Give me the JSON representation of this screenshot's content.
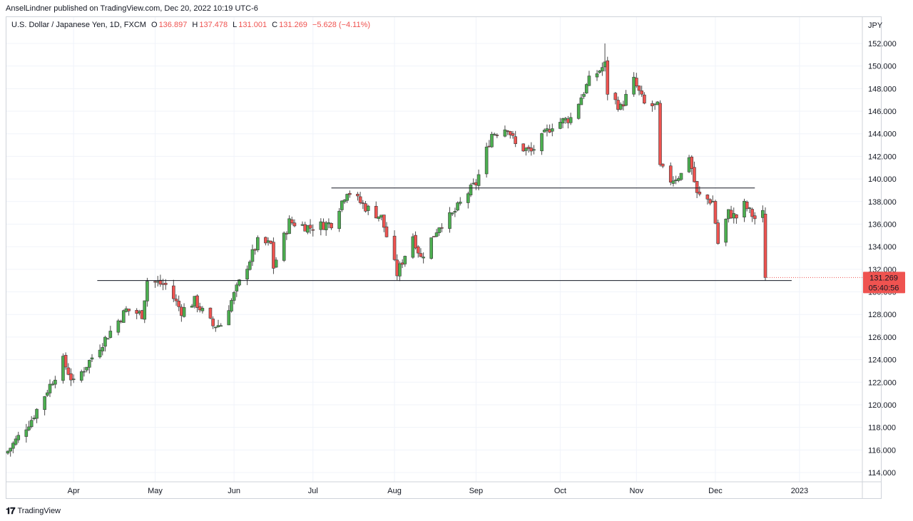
{
  "publisher": "AnselLindner published on TradingView.com, Dec 20, 2022 10:19 UTC-6",
  "legend": {
    "symbol": "U.S. Dollar / Japanese Yen, 1D, FXCM",
    "o_label": "O",
    "o_value": "136.897",
    "h_label": "H",
    "h_value": "137.478",
    "l_label": "L",
    "l_value": "131.001",
    "c_label": "C",
    "c_value": "131.269",
    "change": "−5.628 (−4.11%)"
  },
  "footer": {
    "logo_text": "TradingView"
  },
  "chart_data": {
    "type": "candlestick",
    "currency": "JPY",
    "last_price": "131.269",
    "countdown": "05:40:56",
    "ylim": [
      113,
      154
    ],
    "y_ticks": [
      "152.000",
      "150.000",
      "148.000",
      "146.000",
      "144.000",
      "142.000",
      "140.000",
      "138.000",
      "136.000",
      "134.000",
      "132.000",
      "130.000",
      "128.000",
      "126.000",
      "124.000",
      "122.000",
      "120.000",
      "118.000",
      "116.000",
      "114.000"
    ],
    "x_ticks": [
      {
        "label": "Apr",
        "date": "2022-04-01"
      },
      {
        "label": "May",
        "date": "2022-05-02"
      },
      {
        "label": "Jun",
        "date": "2022-06-01"
      },
      {
        "label": "Jul",
        "date": "2022-07-01"
      },
      {
        "label": "Aug",
        "date": "2022-08-01"
      },
      {
        "label": "Sep",
        "date": "2022-09-01"
      },
      {
        "label": "Oct",
        "date": "2022-10-03"
      },
      {
        "label": "Nov",
        "date": "2022-11-01"
      },
      {
        "label": "Dec",
        "date": "2022-12-01"
      },
      {
        "label": "2023",
        "date": "2023-01-02"
      }
    ],
    "up_color": "#4caf50",
    "down_color": "#ef5350",
    "horizontal_lines": [
      {
        "price": 139.2,
        "from": "2022-07-08",
        "to": "2022-12-16"
      },
      {
        "price": 131.0,
        "from": "2022-04-10",
        "to": "2022-12-30"
      }
    ],
    "waypoints": [
      [
        "2022-03-07",
        115.9
      ],
      [
        "2022-03-16",
        118.7
      ],
      [
        "2022-03-28",
        123.9
      ],
      [
        "2022-04-01",
        121.9
      ],
      [
        "2022-04-15",
        126.5
      ],
      [
        "2022-04-21",
        128.4
      ],
      [
        "2022-04-27",
        128.0
      ],
      [
        "2022-04-29",
        131.0
      ],
      [
        "2022-05-06",
        130.6
      ],
      [
        "2022-05-12",
        128.3
      ],
      [
        "2022-05-17",
        129.2
      ],
      [
        "2022-05-24",
        127.0
      ],
      [
        "2022-05-27",
        127.1
      ],
      [
        "2022-06-03",
        130.8
      ],
      [
        "2022-06-10",
        134.4
      ],
      [
        "2022-06-15",
        134.2
      ],
      [
        "2022-06-16",
        132.2
      ],
      [
        "2022-06-22",
        136.2
      ],
      [
        "2022-06-30",
        135.7
      ],
      [
        "2022-07-08",
        136.1
      ],
      [
        "2022-07-14",
        139.0
      ],
      [
        "2022-07-21",
        137.5
      ],
      [
        "2022-07-27",
        136.6
      ],
      [
        "2022-08-02",
        131.6
      ],
      [
        "2022-08-08",
        135.0
      ],
      [
        "2022-08-11",
        133.0
      ],
      [
        "2022-08-18",
        135.9
      ],
      [
        "2022-08-23",
        136.8
      ],
      [
        "2022-08-29",
        138.8
      ],
      [
        "2022-09-01",
        139.6
      ],
      [
        "2022-09-07",
        144.0
      ],
      [
        "2022-09-13",
        144.6
      ],
      [
        "2022-09-16",
        143.0
      ],
      [
        "2022-09-22",
        142.4
      ],
      [
        "2022-09-30",
        144.8
      ],
      [
        "2022-10-07",
        145.4
      ],
      [
        "2022-10-14",
        148.7
      ],
      [
        "2022-10-20",
        150.1
      ],
      [
        "2022-10-21",
        147.7
      ],
      [
        "2022-10-26",
        146.3
      ],
      [
        "2022-10-31",
        148.7
      ],
      [
        "2022-11-04",
        146.6
      ],
      [
        "2022-11-09",
        146.4
      ],
      [
        "2022-11-10",
        141.0
      ],
      [
        "2022-11-14",
        139.9
      ],
      [
        "2022-11-18",
        140.4
      ],
      [
        "2022-11-21",
        142.1
      ],
      [
        "2022-11-24",
        138.6
      ],
      [
        "2022-11-30",
        138.0
      ],
      [
        "2022-12-02",
        134.3
      ],
      [
        "2022-12-06",
        137.0
      ],
      [
        "2022-12-09",
        136.6
      ],
      [
        "2022-12-12",
        137.7
      ],
      [
        "2022-12-16",
        136.5
      ],
      [
        "2022-12-19",
        136.9
      ],
      [
        "2022-12-20",
        131.269
      ]
    ],
    "candle_overrides": [
      {
        "date": "2022-10-20",
        "high": 152.0
      },
      {
        "date": "2022-12-20",
        "open": 136.897,
        "high": 137.478,
        "low": 131.001,
        "close": 131.269
      }
    ]
  }
}
